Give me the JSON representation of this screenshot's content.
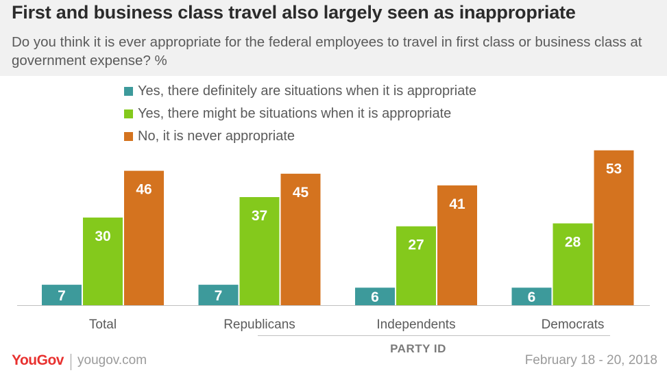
{
  "header": {
    "title": "First and business class travel also largely seen as inappropriate",
    "subtitle": "Do you think it is ever appropriate for the federal employees to travel in first class or business class at government expense? %"
  },
  "colors": {
    "series_1": "#3d9a9b",
    "series_2": "#84c91c",
    "series_3": "#d4731f",
    "header_bg": "#f1f1f1",
    "brand": "#e8312f"
  },
  "chart_data": {
    "type": "bar",
    "categories": [
      "Total",
      "Republicans",
      "Independents",
      "Democrats"
    ],
    "series": [
      {
        "name": "Yes, there definitely are situations when it is appropriate",
        "values": [
          7,
          7,
          6,
          6
        ]
      },
      {
        "name": "Yes, there might be situations when it is appropriate",
        "values": [
          30,
          37,
          27,
          28
        ]
      },
      {
        "name": "No, it is never appropriate",
        "values": [
          46,
          45,
          41,
          53
        ]
      }
    ],
    "xlabel": "PARTY ID",
    "ylabel": "",
    "legend_position": "top",
    "grid": false
  },
  "footer": {
    "logo": "YouGov",
    "site": "yougov.com",
    "date": "February 18 - 20, 2018"
  }
}
